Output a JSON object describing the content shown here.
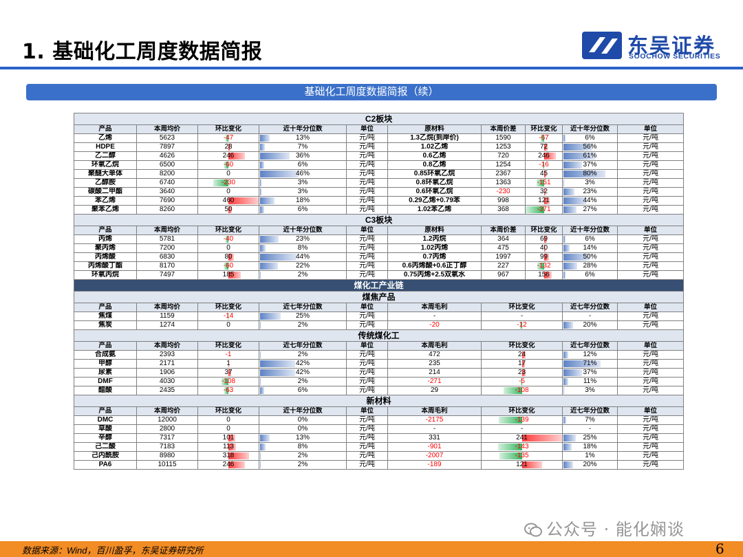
{
  "page": {
    "title": "1. 基础化工周度数据简报",
    "banner": "基础化工周度数据简报（续）",
    "source": "数据来源：Wind，百川盈孚，东吴证券研究所",
    "page_number": "6",
    "watermark": "公众号 · 能化娴谈"
  },
  "logo": {
    "cn": "东吴证券",
    "en": "SOOCHOW SECURITIES",
    "color": "#1f4aa8"
  },
  "sections": [
    {
      "kind": "c",
      "title": "C2板块",
      "headers": [
        "产品",
        "本周均价",
        "环比变化",
        "近十年分位数",
        "单位",
        "原材料",
        "本周价差",
        "环比变化",
        "近十年分位数",
        "单位"
      ],
      "rows": [
        {
          "p": "乙烯",
          "price": "5623",
          "chg": "-47",
          "chg_v": -47,
          "pct": "13%",
          "pct_v": 0.13,
          "unit": "元/吨",
          "raw": "1.3乙烷(到岸价)",
          "spread": "1590",
          "schg": "-67",
          "schg_v": -67,
          "spct": "6%",
          "spct_v": 0.06,
          "sunit": "元/吨"
        },
        {
          "p": "HDPE",
          "price": "7897",
          "chg": "28",
          "chg_v": 28,
          "pct": "7%",
          "pct_v": 0.07,
          "unit": "元/吨",
          "raw": "1.02乙烯",
          "spread": "1253",
          "schg": "72",
          "schg_v": 72,
          "spct": "56%",
          "spct_v": 0.56,
          "sunit": "元/吨"
        },
        {
          "p": "乙二醇",
          "price": "4626",
          "chg": "246",
          "chg_v": 246,
          "pct": "36%",
          "pct_v": 0.36,
          "unit": "元/吨",
          "raw": "0.6乙烯",
          "spread": "720",
          "schg": "246",
          "schg_v": 246,
          "spct": "61%",
          "spct_v": 0.61,
          "sunit": "元/吨"
        },
        {
          "p": "环氧乙烷",
          "price": "6500",
          "chg": "-60",
          "chg_v": -60,
          "pct": "6%",
          "pct_v": 0.06,
          "unit": "元/吨",
          "raw": "0.8乙烯",
          "spread": "1254",
          "schg": "-16",
          "schg_v": -16,
          "spct": "37%",
          "spct_v": 0.37,
          "sunit": "元/吨"
        },
        {
          "p": "聚醚大单体",
          "price": "8200",
          "chg": "0",
          "chg_v": 0,
          "pct": "46%",
          "pct_v": 0.46,
          "unit": "元/吨",
          "raw": "0.85环氧乙烷",
          "spread": "2367",
          "schg": "45",
          "schg_v": 45,
          "spct": "80%",
          "spct_v": 0.8,
          "sunit": "元/吨"
        },
        {
          "p": "乙醇胺",
          "price": "6740",
          "chg": "-230",
          "chg_v": -230,
          "pct": "3%",
          "pct_v": 0.03,
          "unit": "元/吨",
          "raw": "0.8环氧乙烷",
          "spread": "1363",
          "schg": "-151",
          "schg_v": -151,
          "spct": "3%",
          "spct_v": 0.03,
          "sunit": "元/吨"
        },
        {
          "p": "碳酸二甲酯",
          "price": "3640",
          "chg": "0",
          "chg_v": 0,
          "pct": "3%",
          "pct_v": 0.03,
          "unit": "元/吨",
          "raw": "0.6环氧乙烷",
          "spread": "-230",
          "schg": "32",
          "schg_v": 32,
          "spct": "23%",
          "spct_v": 0.23,
          "sunit": "元/吨"
        },
        {
          "p": "苯乙烯",
          "price": "7690",
          "chg": "460",
          "chg_v": 460,
          "pct": "18%",
          "pct_v": 0.18,
          "unit": "元/吨",
          "raw": "0.29乙烯+0.79苯",
          "spread": "998",
          "schg": "121",
          "schg_v": 121,
          "spct": "44%",
          "spct_v": 0.44,
          "sunit": "元/吨"
        },
        {
          "p": "聚苯乙烯",
          "price": "8260",
          "chg": "50",
          "chg_v": 50,
          "pct": "6%",
          "pct_v": 0.06,
          "unit": "元/吨",
          "raw": "1.02苯乙烯",
          "spread": "368",
          "schg": "-371",
          "schg_v": -371,
          "spct": "27%",
          "spct_v": 0.27,
          "sunit": "元/吨"
        }
      ]
    },
    {
      "kind": "c",
      "title": "C3板块",
      "headers": [
        "产品",
        "本周均价",
        "环比变化",
        "近十年分位数",
        "单位",
        "原材料",
        "本周价差",
        "环比变化",
        "近十年分位数",
        "单位"
      ],
      "rows": [
        {
          "p": "丙烯",
          "price": "5781",
          "chg": "-40",
          "chg_v": -40,
          "pct": "23%",
          "pct_v": 0.23,
          "unit": "元/吨",
          "raw": "1.2丙烷",
          "spread": "364",
          "schg": "69",
          "schg_v": 69,
          "spct": "6%",
          "spct_v": 0.06,
          "sunit": "元/吨"
        },
        {
          "p": "聚丙烯",
          "price": "7200",
          "chg": "0",
          "chg_v": 0,
          "pct": "8%",
          "pct_v": 0.08,
          "unit": "元/吨",
          "raw": "1.02丙烯",
          "spread": "475",
          "schg": "40",
          "schg_v": 40,
          "spct": "14%",
          "spct_v": 0.14,
          "sunit": "元/吨"
        },
        {
          "p": "丙烯酸",
          "price": "6830",
          "chg": "80",
          "chg_v": 80,
          "pct": "44%",
          "pct_v": 0.44,
          "unit": "元/吨",
          "raw": "0.7丙烯",
          "spread": "1997",
          "schg": "99",
          "schg_v": 99,
          "spct": "50%",
          "spct_v": 0.5,
          "sunit": "元/吨"
        },
        {
          "p": "丙烯酸丁酯",
          "price": "8170",
          "chg": "-60",
          "chg_v": -60,
          "pct": "22%",
          "pct_v": 0.22,
          "unit": "元/吨",
          "raw": "0.6丙烯酸+0.6正丁醇",
          "spread": "227",
          "schg": "-132",
          "schg_v": -132,
          "spct": "28%",
          "spct_v": 0.28,
          "sunit": "元/吨"
        },
        {
          "p": "环氧丙烷",
          "price": "7497",
          "chg": "185",
          "chg_v": 185,
          "pct": "2%",
          "pct_v": 0.02,
          "unit": "元/吨",
          "raw": "0.75丙烯+2.5双氧水",
          "spread": "967",
          "schg": "156",
          "schg_v": 156,
          "spct": "6%",
          "spct_v": 0.06,
          "sunit": "元/吨"
        }
      ]
    },
    {
      "kind": "dark",
      "title": "煤化工产业链"
    },
    {
      "kind": "m",
      "title": "煤焦产品",
      "headers": [
        "产品",
        "本周均价",
        "环比变化",
        "近七年分位数",
        "单位",
        "本周毛利",
        "环比变化",
        "近七年分位数",
        "单位"
      ],
      "rows": [
        {
          "p": "焦煤",
          "price": "1159",
          "chg": "-14",
          "chg_v": -14,
          "pct": "25%",
          "pct_v": 0.25,
          "unit": "元/吨",
          "margin": "-",
          "mchg": "-",
          "mchg_v": 0,
          "mpct": "-",
          "mpct_v": 0,
          "munit": "元/吨"
        },
        {
          "p": "焦炭",
          "price": "1274",
          "chg": "0",
          "chg_v": 0,
          "pct": "2%",
          "pct_v": 0.02,
          "unit": "元/吨",
          "margin": "-20",
          "mchg": "-12",
          "mchg_v": -12,
          "mpct": "20%",
          "mpct_v": 0.2,
          "munit": "元/吨"
        }
      ]
    },
    {
      "kind": "m",
      "title": "传统煤化工",
      "headers": [
        "产品",
        "本周均价",
        "环比变化",
        "近七年分位数",
        "单位",
        "本周毛利",
        "环比变化",
        "近七年分位数",
        "单位"
      ],
      "rows": [
        {
          "p": "合成氨",
          "price": "2393",
          "chg": "-1",
          "chg_v": -1,
          "pct": "2%",
          "pct_v": 0.02,
          "unit": "元/吨",
          "margin": "472",
          "mchg": "24",
          "mchg_v": 24,
          "mpct": "12%",
          "mpct_v": 0.12,
          "munit": "元/吨"
        },
        {
          "p": "甲醇",
          "price": "2171",
          "chg": "1",
          "chg_v": 1,
          "pct": "42%",
          "pct_v": 0.42,
          "unit": "元/吨",
          "margin": "235",
          "mchg": "17",
          "mchg_v": 17,
          "mpct": "71%",
          "mpct_v": 0.71,
          "munit": "元/吨"
        },
        {
          "p": "尿素",
          "price": "1906",
          "chg": "37",
          "chg_v": 37,
          "pct": "42%",
          "pct_v": 0.42,
          "unit": "元/吨",
          "margin": "214",
          "mchg": "23",
          "mchg_v": 23,
          "mpct": "37%",
          "mpct_v": 0.37,
          "munit": "元/吨"
        },
        {
          "p": "DMF",
          "price": "4030",
          "chg": "-108",
          "chg_v": -108,
          "pct": "2%",
          "pct_v": 0.02,
          "unit": "元/吨",
          "margin": "-271",
          "mchg": "-5",
          "mchg_v": -5,
          "mpct": "11%",
          "mpct_v": 0.11,
          "munit": "元/吨"
        },
        {
          "p": "醋酸",
          "price": "2435",
          "chg": "-63",
          "chg_v": -63,
          "pct": "6%",
          "pct_v": 0.06,
          "unit": "元/吨",
          "margin": "29",
          "mchg": "-108",
          "mchg_v": -108,
          "mpct": "3%",
          "mpct_v": 0.03,
          "munit": "元/吨"
        }
      ]
    },
    {
      "kind": "m",
      "title": "新材料",
      "headers": [
        "产品",
        "本周均价",
        "环比变化",
        "近十年分位数",
        "单位",
        "本周毛利",
        "环比变化",
        "近七年分位数",
        "单位"
      ],
      "rows": [
        {
          "p": "DMC",
          "price": "12000",
          "chg": "0",
          "chg_v": 0,
          "pct": "0%",
          "pct_v": 0,
          "unit": "元/吨",
          "margin": "-2175",
          "mchg": "-139",
          "mchg_v": -139,
          "mpct": "7%",
          "mpct_v": 0.07,
          "munit": "元/吨"
        },
        {
          "p": "草酸",
          "price": "2800",
          "chg": "0",
          "chg_v": 0,
          "pct": "0%",
          "pct_v": 0,
          "unit": "元/吨",
          "margin": "-",
          "mchg": "-",
          "mchg_v": 0,
          "mpct": "-",
          "mpct_v": 0,
          "munit": "元/吨"
        },
        {
          "p": "辛醇",
          "price": "7317",
          "chg": "101",
          "chg_v": 101,
          "pct": "13%",
          "pct_v": 0.13,
          "unit": "元/吨",
          "margin": "331",
          "mchg": "241",
          "mchg_v": 241,
          "mpct": "25%",
          "mpct_v": 0.25,
          "munit": "元/吨"
        },
        {
          "p": "己二酸",
          "price": "7183",
          "chg": "113",
          "chg_v": 113,
          "pct": "8%",
          "pct_v": 0.08,
          "unit": "元/吨",
          "margin": "-901",
          "mchg": "-143",
          "mchg_v": -143,
          "mpct": "18%",
          "mpct_v": 0.18,
          "munit": "元/吨"
        },
        {
          "p": "己内酰胺",
          "price": "8980",
          "chg": "318",
          "chg_v": 318,
          "pct": "2%",
          "pct_v": 0.02,
          "unit": "元/吨",
          "margin": "-2007",
          "mchg": "-135",
          "mchg_v": -135,
          "mpct": "1%",
          "mpct_v": 0.01,
          "munit": "元/吨"
        },
        {
          "p": "PA6",
          "price": "10115",
          "chg": "246",
          "chg_v": 246,
          "pct": "2%",
          "pct_v": 0.02,
          "unit": "元/吨",
          "margin": "-189",
          "mchg": "121",
          "mchg_v": 121,
          "mpct": "20%",
          "mpct_v": 0.2,
          "munit": "元/吨"
        }
      ]
    }
  ],
  "colors": {
    "header_bg": "#dfe6f0",
    "dark_bg": "#364f73",
    "accent": "#2a63c8",
    "footer": "#f28c25",
    "negative": "#ff0000"
  }
}
